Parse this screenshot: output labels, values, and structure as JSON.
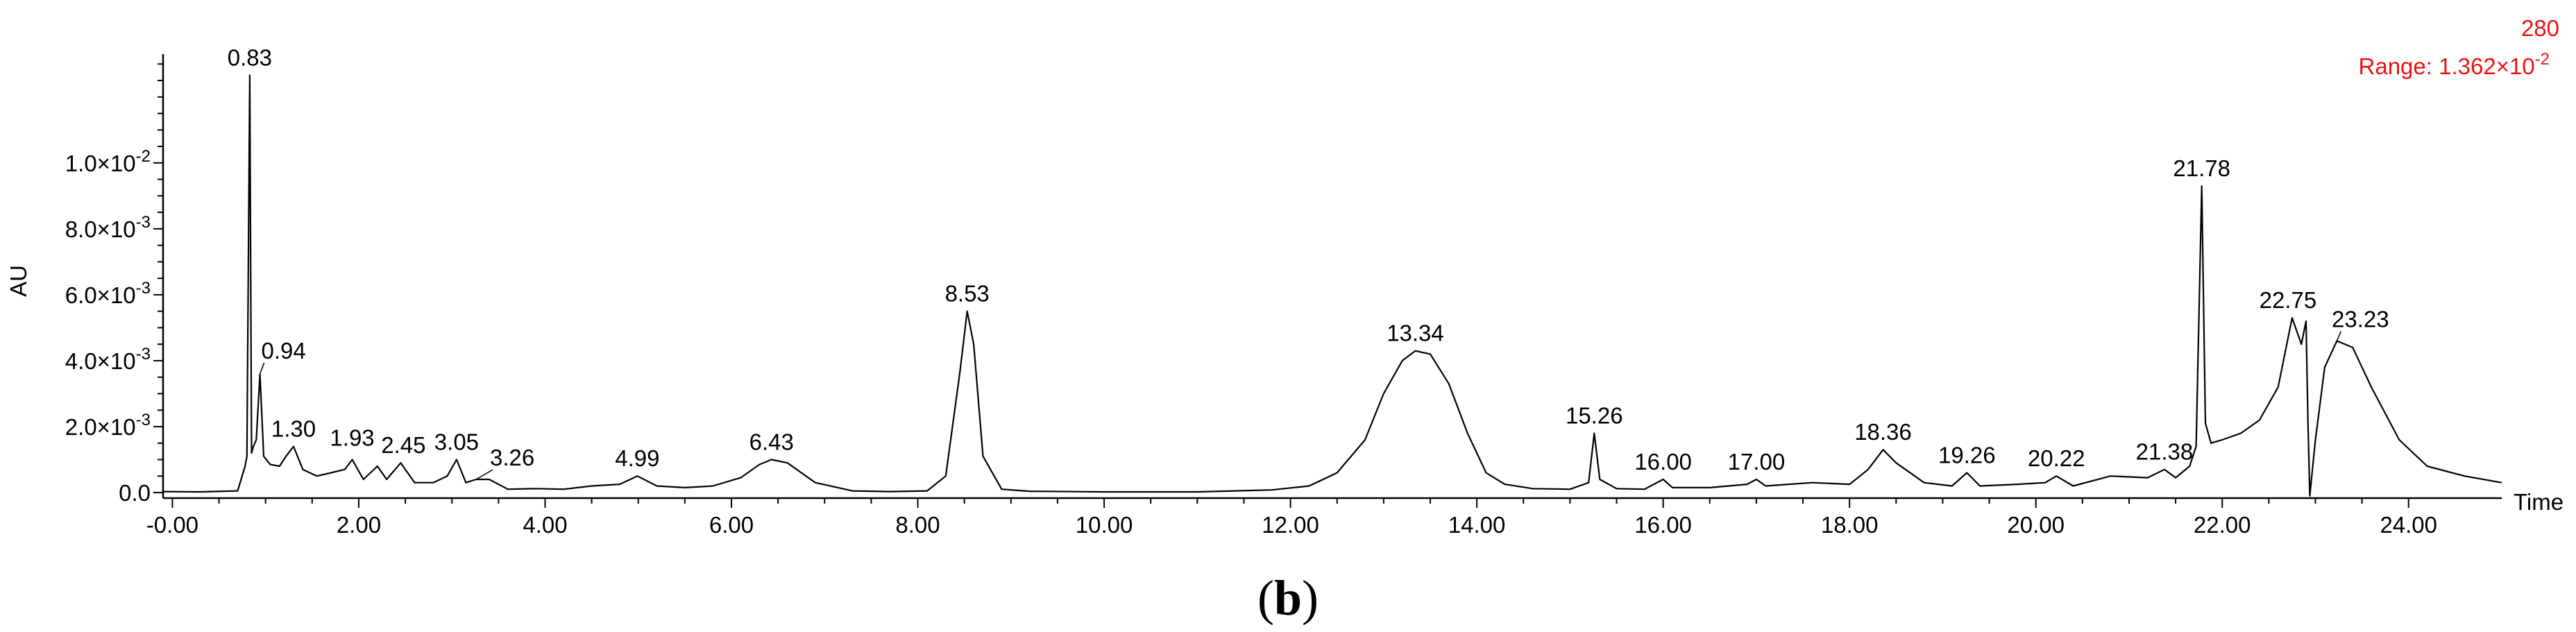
{
  "chart_data": {
    "type": "line",
    "title": "",
    "xlabel": "Time",
    "ylabel": "AU",
    "xlim": [
      -0.1,
      25.0
    ],
    "ylim": [
      -0.0002,
      0.0133
    ],
    "x_ticks": [
      0,
      2,
      4,
      6,
      8,
      10,
      12,
      14,
      16,
      18,
      20,
      22,
      24
    ],
    "x_tick_labels": [
      "-0.00",
      "2.00",
      "4.00",
      "6.00",
      "8.00",
      "10.00",
      "12.00",
      "14.00",
      "16.00",
      "18.00",
      "20.00",
      "22.00",
      "24.00"
    ],
    "y_ticks": [
      0,
      0.002,
      0.004,
      0.006,
      0.008,
      0.01
    ],
    "y_tick_labels": [
      {
        "mantissa": "0.0",
        "exp": ""
      },
      {
        "mantissa": "2.0×10",
        "exp": "-3"
      },
      {
        "mantissa": "4.0×10",
        "exp": "-3"
      },
      {
        "mantissa": "6.0×10",
        "exp": "-3"
      },
      {
        "mantissa": "8.0×10",
        "exp": "-3"
      },
      {
        "mantissa": "1.0×10",
        "exp": "-2"
      }
    ],
    "channel": "280",
    "range_label": "Range: 1.362×10",
    "range_exp": "-2",
    "grid": false,
    "peaks": [
      {
        "label": "0.83",
        "x": 0.83,
        "y": 0.01266
      },
      {
        "label": "0.94",
        "x": 0.94,
        "y": 0.0036
      },
      {
        "label": "1.30",
        "x": 1.3,
        "y": 0.0014
      },
      {
        "label": "1.93",
        "x": 1.93,
        "y": 0.001
      },
      {
        "label": "2.45",
        "x": 2.45,
        "y": 0.0009
      },
      {
        "label": "3.05",
        "x": 3.05,
        "y": 0.001
      },
      {
        "label": "3.26",
        "x": 3.26,
        "y": 0.0004
      },
      {
        "label": "4.99",
        "x": 4.99,
        "y": 0.0005
      },
      {
        "label": "6.43",
        "x": 6.43,
        "y": 0.001
      },
      {
        "label": "8.53",
        "x": 8.53,
        "y": 0.0055
      },
      {
        "label": "13.34",
        "x": 13.34,
        "y": 0.0043
      },
      {
        "label": "15.26",
        "x": 15.26,
        "y": 0.0018
      },
      {
        "label": "16.00",
        "x": 16.0,
        "y": 0.0004
      },
      {
        "label": "17.00",
        "x": 17.0,
        "y": 0.0004
      },
      {
        "label": "18.36",
        "x": 18.36,
        "y": 0.0013
      },
      {
        "label": "19.26",
        "x": 19.26,
        "y": 0.0006
      },
      {
        "label": "20.22",
        "x": 20.22,
        "y": 0.0005
      },
      {
        "label": "21.38",
        "x": 21.38,
        "y": 0.0007
      },
      {
        "label": "21.78",
        "x": 21.78,
        "y": 0.0093
      },
      {
        "label": "22.75",
        "x": 22.75,
        "y": 0.0053
      },
      {
        "label": "23.23",
        "x": 23.23,
        "y": 0.0046
      }
    ],
    "series": [
      {
        "x": [
          -0.1,
          0.3,
          0.7,
          0.78,
          0.8,
          0.83,
          0.85,
          0.87,
          0.9,
          0.94,
          0.98,
          1.05,
          1.15,
          1.22,
          1.3,
          1.4,
          1.55,
          1.7,
          1.85,
          1.93,
          2.05,
          2.2,
          2.3,
          2.45,
          2.6,
          2.8,
          2.95,
          3.05,
          3.15,
          3.26,
          3.4,
          3.6,
          3.9,
          4.2,
          4.5,
          4.8,
          4.99,
          5.2,
          5.5,
          5.8,
          6.1,
          6.3,
          6.43,
          6.6,
          6.9,
          7.3,
          7.7,
          8.1,
          8.3,
          8.45,
          8.53,
          8.6,
          8.7,
          8.9,
          9.2,
          10.0,
          11.0,
          11.8,
          12.2,
          12.5,
          12.8,
          13.0,
          13.2,
          13.34,
          13.5,
          13.7,
          13.9,
          14.1,
          14.3,
          14.6,
          15.0,
          15.2,
          15.26,
          15.32,
          15.5,
          15.8,
          16.0,
          16.1,
          16.5,
          16.9,
          17.0,
          17.1,
          17.6,
          18.0,
          18.2,
          18.36,
          18.5,
          18.8,
          19.1,
          19.26,
          19.4,
          19.8,
          20.1,
          20.22,
          20.4,
          20.8,
          21.2,
          21.38,
          21.5,
          21.65,
          21.72,
          21.78,
          21.82,
          21.88,
          22.0,
          22.2,
          22.4,
          22.6,
          22.75,
          22.85,
          22.9,
          22.92,
          22.94,
          23.0,
          23.1,
          23.23,
          23.4,
          23.6,
          23.9,
          24.2,
          24.6,
          25.0
        ],
        "y": [
          3e-05,
          2e-05,
          5e-05,
          0.0008,
          0.0011,
          0.01266,
          0.0012,
          0.0014,
          0.0016,
          0.0036,
          0.0011,
          0.00085,
          0.0008,
          0.0011,
          0.0014,
          0.0007,
          0.0005,
          0.0006,
          0.0007,
          0.001,
          0.0004,
          0.0008,
          0.0004,
          0.0009,
          0.0003,
          0.0003,
          0.0005,
          0.001,
          0.0003,
          0.0004,
          0.0004,
          0.0001,
          0.00012,
          0.0001,
          0.0002,
          0.00025,
          0.0005,
          0.0002,
          0.00015,
          0.0002,
          0.00045,
          0.00085,
          0.001,
          0.0009,
          0.0003,
          5e-05,
          3e-05,
          5e-05,
          0.0005,
          0.0036,
          0.0055,
          0.0045,
          0.0011,
          0.0001,
          4e-05,
          2e-05,
          2e-05,
          8e-05,
          0.0002,
          0.0006,
          0.0016,
          0.003,
          0.004,
          0.0043,
          0.0042,
          0.0033,
          0.0018,
          0.0006,
          0.00025,
          0.00012,
          0.0001,
          0.0003,
          0.0018,
          0.0004,
          0.00012,
          0.0001,
          0.0004,
          0.00015,
          0.00015,
          0.00025,
          0.0004,
          0.0002,
          0.0003,
          0.00025,
          0.0007,
          0.0013,
          0.0009,
          0.0003,
          0.0002,
          0.0006,
          0.0002,
          0.00025,
          0.0003,
          0.0005,
          0.0002,
          0.0005,
          0.00045,
          0.0007,
          0.00045,
          0.0008,
          0.0014,
          0.0093,
          0.0021,
          0.0015,
          0.0016,
          0.0018,
          0.0022,
          0.0032,
          0.0053,
          0.0045,
          0.0052,
          0.0022,
          -0.0001,
          0.0016,
          0.0038,
          0.0046,
          0.0044,
          0.0032,
          0.0016,
          0.0008,
          0.0005,
          0.0003
        ]
      }
    ]
  },
  "caption": {
    "open": "(",
    "letter": "b",
    "close": ")"
  }
}
